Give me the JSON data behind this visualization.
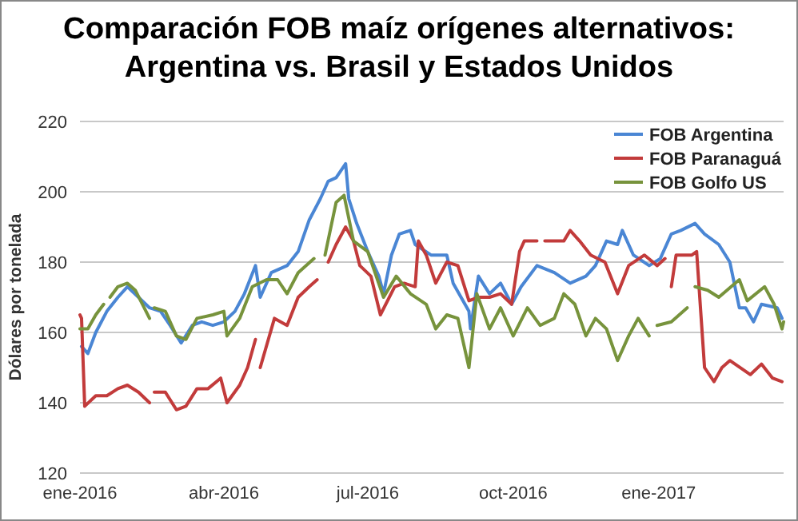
{
  "chart_data": {
    "type": "line",
    "title": "Comparación FOB maíz orígenes alternativos:\nArgentina vs. Brasil y Estados Unidos",
    "ylabel": "Dólares por tonelada",
    "xlim": [
      "2016-01-01",
      "2017-03-21"
    ],
    "xticks": [
      {
        "value": "2016-01-01",
        "label": "ene-2016"
      },
      {
        "value": "2016-04-01",
        "label": "abr-2016"
      },
      {
        "value": "2016-07-01",
        "label": "jul-2016"
      },
      {
        "value": "2016-10-01",
        "label": "oct-2016"
      },
      {
        "value": "2017-01-01",
        "label": "ene-2017"
      }
    ],
    "ylim": [
      120,
      220
    ],
    "yticks": [
      120,
      140,
      160,
      180,
      200,
      220
    ],
    "grid": "y",
    "legend": "top right",
    "marker": "none",
    "line_style": "solid",
    "series": [
      {
        "name": "FOB Argentina",
        "color": "#4a86d4",
        "x": [
          "2016-01-02",
          "2016-01-06",
          "2016-01-11",
          "2016-01-18",
          "2016-01-25",
          "2016-01-31",
          "2016-02-07",
          "2016-02-14",
          "2016-02-21",
          "2016-02-27",
          "2016-03-05",
          "2016-03-12",
          "2016-03-18",
          "2016-03-25",
          "2016-04-01",
          "2016-04-08",
          "2016-04-14",
          "2016-04-21",
          "2016-04-24",
          "2016-05-01",
          "2016-05-11",
          "2016-05-18",
          "2016-05-25",
          "2016-06-01",
          "2016-06-06",
          "2016-06-11",
          "2016-06-17",
          "2016-06-19",
          "2016-06-24",
          "2016-07-01",
          "2016-07-08",
          "2016-07-11",
          "2016-07-16",
          "2016-07-21",
          "2016-07-28",
          "2016-07-31",
          "2016-08-10",
          "2016-08-20",
          "2016-08-24",
          "2016-09-03",
          "2016-09-04",
          "2016-09-09",
          "2016-09-16",
          "2016-09-23",
          "2016-09-30",
          "2016-10-06",
          "2016-10-16",
          "2016-10-27",
          "2016-11-06",
          "2016-11-16",
          "2016-11-22",
          "2016-11-29",
          "2016-12-06",
          "2016-12-09",
          "2016-12-16",
          "2016-12-26",
          "2017-01-02",
          "2017-01-09",
          "2017-01-15",
          "2017-01-24",
          "2017-01-30",
          "2017-02-08",
          "2017-02-15",
          "2017-02-21",
          "2017-02-25",
          "2017-03-02",
          "2017-03-07",
          "2017-03-17",
          "2017-03-20"
        ],
        "values": [
          156,
          154,
          160,
          166,
          170,
          173,
          170,
          167,
          166,
          162,
          157,
          162,
          163,
          162,
          163,
          166,
          171,
          179,
          170,
          177,
          179,
          183,
          192,
          198,
          203,
          204,
          208,
          198,
          191,
          183,
          176,
          171,
          182,
          188,
          189,
          185,
          182,
          182,
          174,
          166,
          161,
          176,
          171,
          174,
          168,
          173,
          179,
          177,
          174,
          176,
          179,
          186,
          185,
          189,
          182,
          179,
          181,
          188,
          189,
          191,
          188,
          185,
          180,
          167,
          167,
          163,
          168,
          167,
          164
        ]
      },
      {
        "name": "FOB Paranaguá",
        "color": "#c23b3b",
        "x": [
          "2016-01-01",
          "2016-01-02",
          "2016-01-04",
          "2016-01-11",
          "2016-01-18",
          "2016-01-25",
          "2016-01-31",
          "2016-02-07",
          "2016-02-14",
          "2016-02-15",
          "2016-02-17",
          "2016-02-24",
          "2016-03-02",
          "2016-03-08",
          "2016-03-15",
          "2016-03-22",
          "2016-03-30",
          "2016-04-03",
          "2016-04-11",
          "2016-04-16",
          "2016-04-21",
          "2016-04-22",
          "2016-04-24",
          "2016-05-03",
          "2016-05-11",
          "2016-05-18",
          "2016-05-25",
          "2016-05-30",
          "2016-06-02",
          "2016-06-06",
          "2016-06-11",
          "2016-06-17",
          "2016-06-22",
          "2016-06-26",
          "2016-07-03",
          "2016-07-09",
          "2016-07-18",
          "2016-07-24",
          "2016-07-31",
          "2016-08-02",
          "2016-08-07",
          "2016-08-13",
          "2016-08-20",
          "2016-08-27",
          "2016-09-03",
          "2016-09-09",
          "2016-09-16",
          "2016-09-23",
          "2016-09-30",
          "2016-10-05",
          "2016-10-08",
          "2016-10-16",
          "2016-10-18",
          "2016-10-21",
          "2016-11-02",
          "2016-11-06",
          "2016-11-12",
          "2016-11-19",
          "2016-11-28",
          "2016-12-06",
          "2016-12-13",
          "2016-12-23",
          "2016-12-31",
          "2017-01-05",
          "2017-01-07",
          "2017-01-09",
          "2017-01-12",
          "2017-01-22",
          "2017-01-25",
          "2017-01-30",
          "2017-02-05",
          "2017-02-10",
          "2017-02-15",
          "2017-02-28",
          "2017-03-07",
          "2017-03-14",
          "2017-03-20"
        ],
        "values": [
          165,
          164,
          139,
          142,
          142,
          144,
          145,
          143,
          140,
          null,
          143,
          143,
          138,
          139,
          144,
          144,
          147,
          140,
          145,
          150,
          158,
          null,
          150,
          164,
          162,
          170,
          173,
          175,
          null,
          180,
          185,
          190,
          186,
          179,
          176,
          165,
          173,
          174,
          173,
          186,
          182,
          174,
          180,
          179,
          169,
          170,
          170,
          171,
          168,
          183,
          186,
          186,
          null,
          186,
          186,
          189,
          186,
          182,
          180,
          171,
          179,
          182,
          179,
          181,
          null,
          173,
          182,
          182,
          183,
          150,
          146,
          150,
          152,
          148,
          151,
          147,
          146
        ]
      },
      {
        "name": "FOB Golfo US",
        "color": "#77933c",
        "x": [
          "2016-01-01",
          "2016-01-06",
          "2016-01-11",
          "2016-01-16",
          "2016-01-18",
          "2016-01-20",
          "2016-01-25",
          "2016-01-31",
          "2016-02-05",
          "2016-02-14",
          "2016-02-15",
          "2016-02-17",
          "2016-02-24",
          "2016-03-02",
          "2016-03-08",
          "2016-03-15",
          "2016-03-25",
          "2016-04-01",
          "2016-04-03",
          "2016-04-11",
          "2016-04-19",
          "2016-04-28",
          "2016-05-05",
          "2016-05-11",
          "2016-05-18",
          "2016-05-28",
          "2016-06-01",
          "2016-06-04",
          "2016-06-11",
          "2016-06-16",
          "2016-06-22",
          "2016-07-01",
          "2016-07-11",
          "2016-07-19",
          "2016-07-28",
          "2016-08-07",
          "2016-08-13",
          "2016-08-20",
          "2016-08-27",
          "2016-09-03",
          "2016-09-08",
          "2016-09-16",
          "2016-09-23",
          "2016-10-01",
          "2016-10-10",
          "2016-10-18",
          "2016-10-27",
          "2016-11-02",
          "2016-11-09",
          "2016-11-16",
          "2016-11-22",
          "2016-11-29",
          "2016-12-06",
          "2016-12-13",
          "2016-12-19",
          "2016-12-26",
          "2016-12-29",
          "2016-12-31",
          "2017-01-09",
          "2017-01-19",
          "2017-01-21",
          "2017-01-24",
          "2017-02-01",
          "2017-02-08",
          "2017-02-21",
          "2017-02-26",
          "2017-03-09",
          "2017-03-15",
          "2017-03-20",
          "2017-03-21"
        ],
        "values": [
          161,
          161,
          165,
          168,
          null,
          170,
          173,
          174,
          172,
          164,
          null,
          167,
          166,
          159,
          158,
          164,
          165,
          166,
          159,
          164,
          173,
          175,
          175,
          171,
          177,
          181,
          null,
          182,
          197,
          199,
          186,
          183,
          170,
          176,
          171,
          168,
          161,
          165,
          164,
          150,
          171,
          161,
          167,
          159,
          167,
          162,
          164,
          171,
          168,
          159,
          164,
          161,
          152,
          159,
          164,
          159,
          null,
          162,
          163,
          167,
          null,
          173,
          172,
          170,
          175,
          169,
          173,
          168,
          161,
          163
        ]
      }
    ]
  }
}
